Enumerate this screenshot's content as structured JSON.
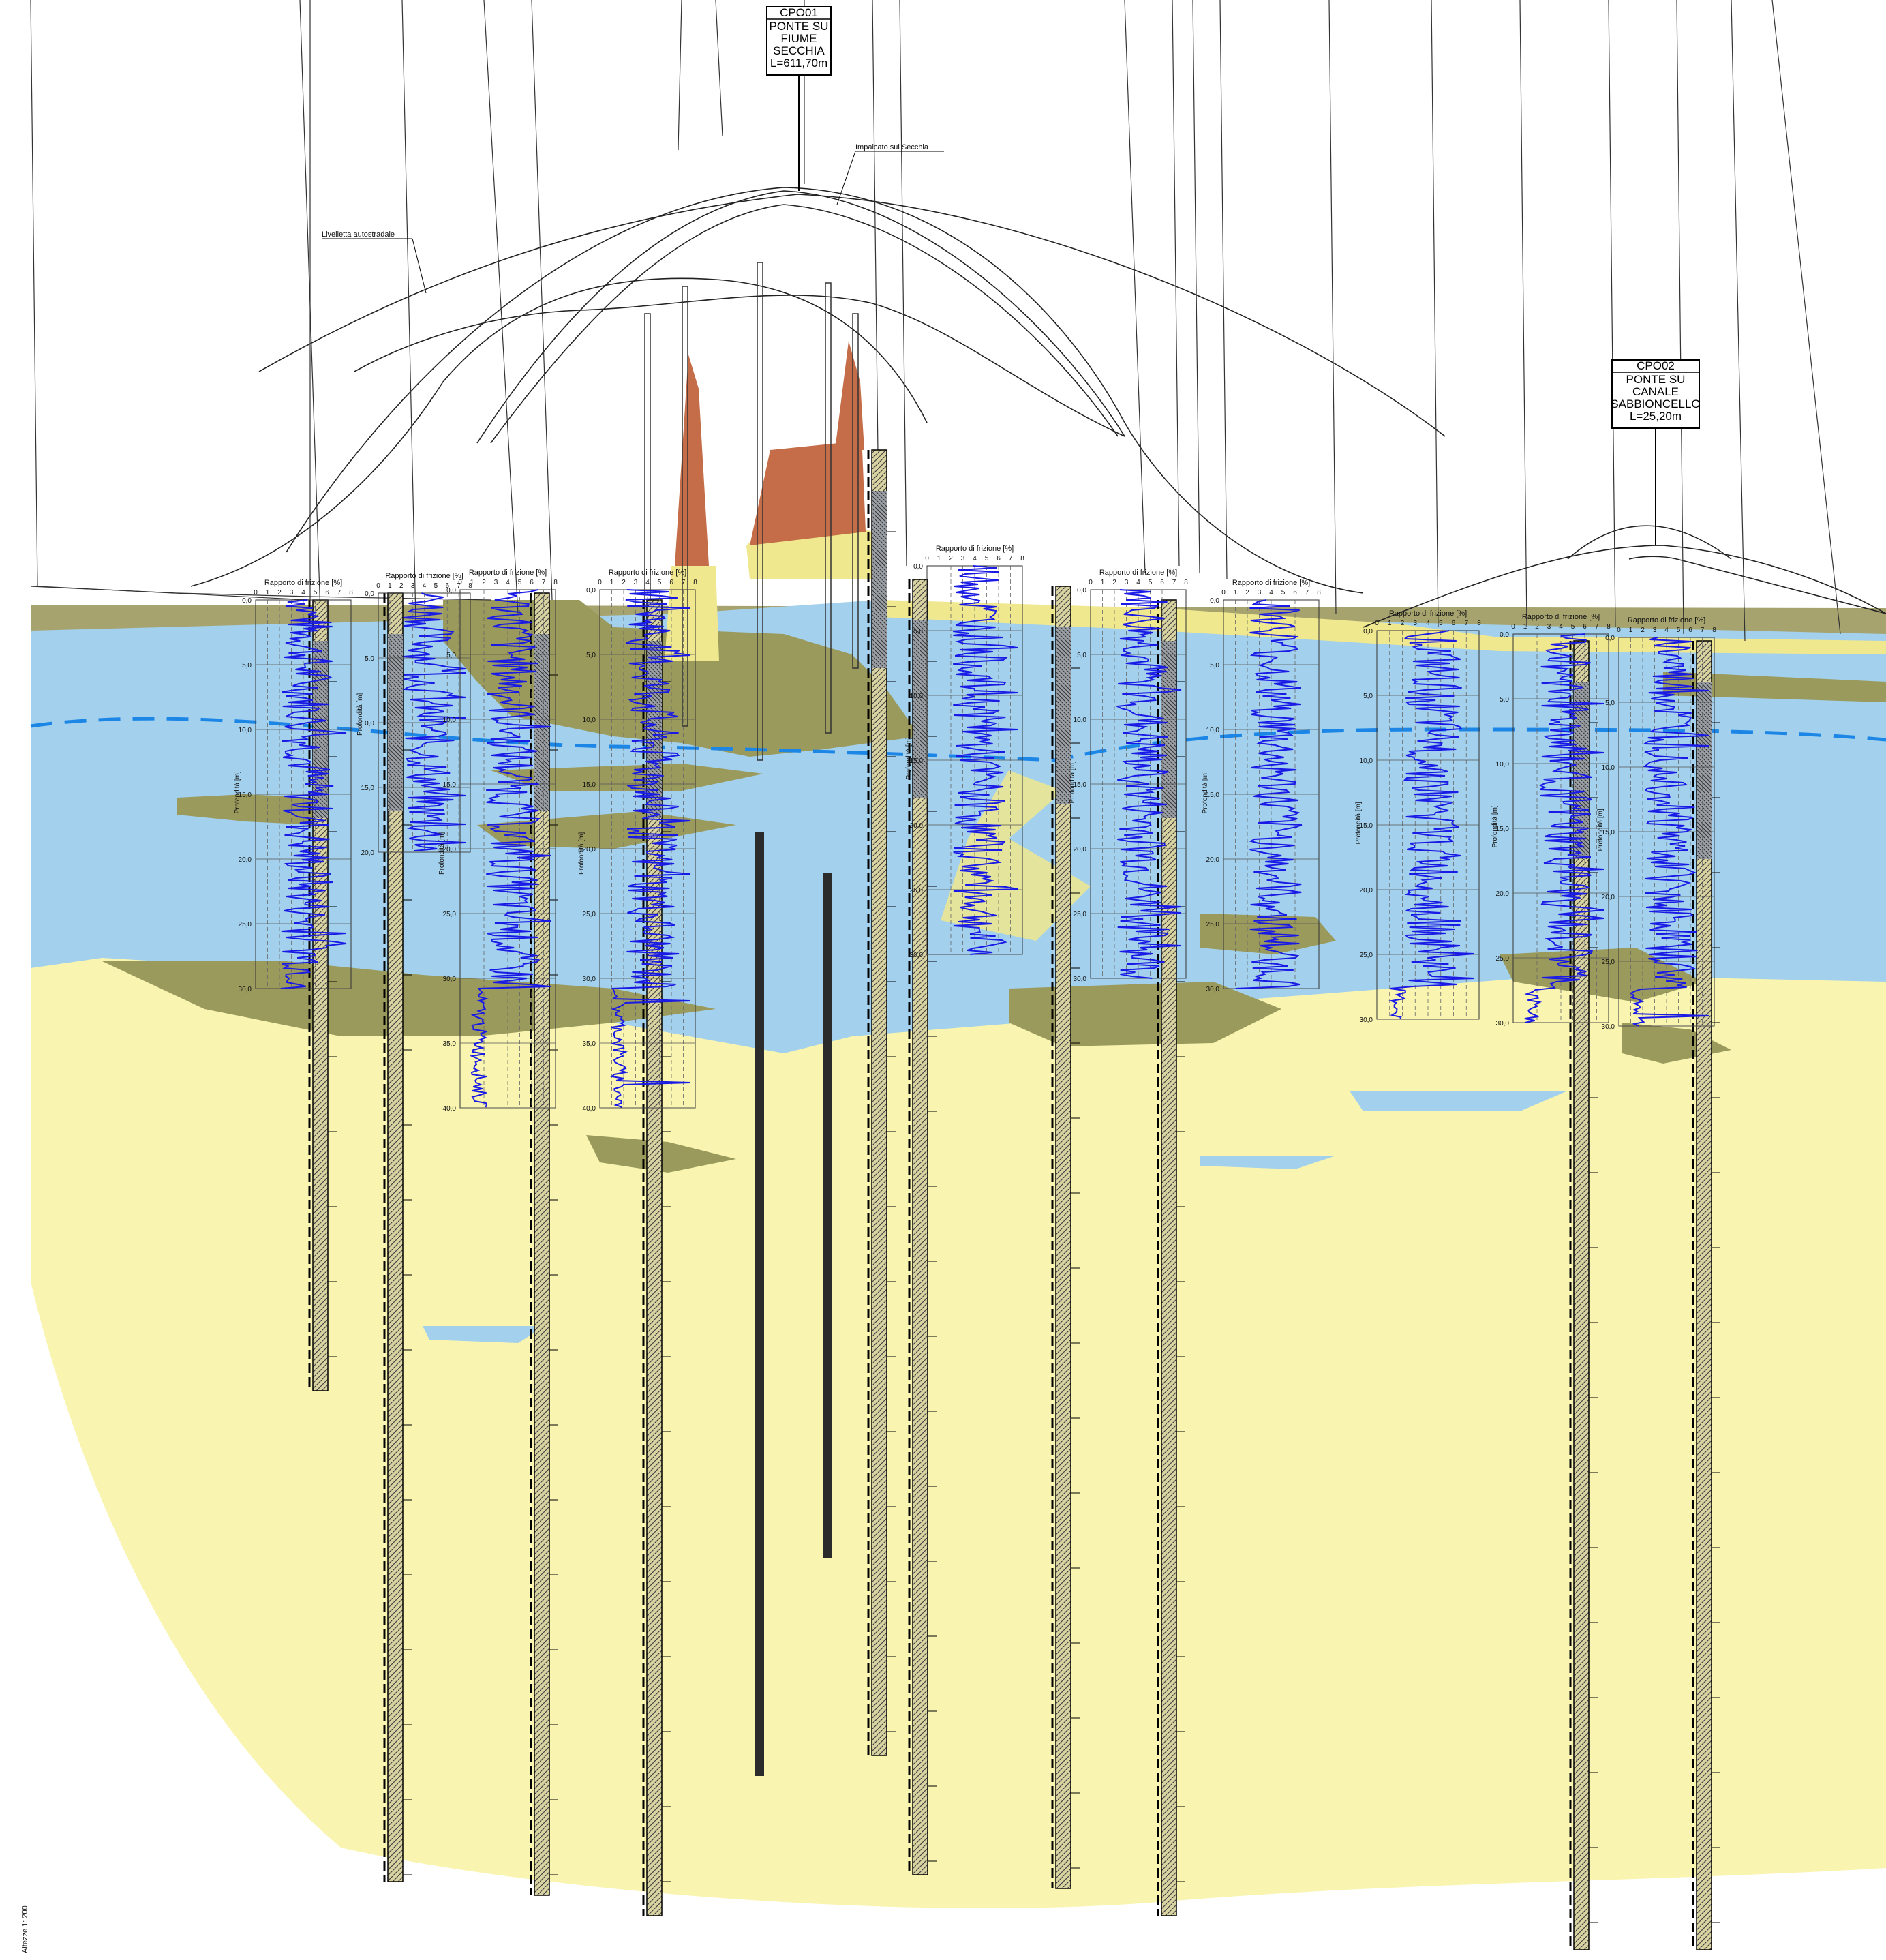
{
  "bridge_boxes": [
    {
      "code": "CPO01",
      "lines": [
        "PONTE SU",
        "FIUME",
        "SECCHIA",
        "L=611,70m"
      ]
    },
    {
      "code": "CPO02",
      "lines": [
        "PONTE SU",
        "CANALE",
        "SABBIONCELLO",
        "L=25,20m"
      ]
    }
  ],
  "annotations": {
    "deck": "Impalcato sul Secchia",
    "grade": "Livelletta autostradale",
    "scale": "Altezze 1: 200"
  },
  "cpt_common": {
    "friction_title": "Rapporto di frizione [%]",
    "friction_ticks": [
      "0",
      "1",
      "2",
      "3",
      "4",
      "5",
      "6",
      "7",
      "8"
    ],
    "depth_axis": "Profondità [m]",
    "zero_label": "0,0"
  },
  "cpt_tests": [
    {
      "depth_ticks": [
        "5,0",
        "10,0",
        "15,0",
        "20,0",
        "25,0",
        "30,0"
      ],
      "max_depth_m": 30
    },
    {
      "depth_ticks": [
        "5,0",
        "10,0",
        "15,0",
        "20,0"
      ],
      "max_depth_m": 20
    },
    {
      "depth_ticks": [
        "5,0",
        "10,0",
        "15,0",
        "20,0",
        "25,0",
        "30,0",
        "35,0",
        "40,0"
      ],
      "max_depth_m": 40
    },
    {
      "depth_ticks": [
        "5,0",
        "10,0",
        "15,0",
        "20,0",
        "25,0",
        "30,0",
        "35,0",
        "40,0"
      ],
      "max_depth_m": 40
    },
    {
      "depth_ticks": [
        "5,0",
        "10,0",
        "15,0",
        "20,0",
        "25,0",
        "30,0"
      ],
      "max_depth_m": 30
    },
    {
      "depth_ticks": [
        "5,0",
        "10,0",
        "15,0",
        "20,0",
        "25,0",
        "30,0"
      ],
      "max_depth_m": 30
    },
    {
      "depth_ticks": [
        "5,0",
        "10,0",
        "15,0",
        "20,0",
        "25,0",
        "30,0"
      ],
      "max_depth_m": 30
    },
    {
      "depth_ticks": [
        "5,0",
        "10,0",
        "15,0",
        "20,0",
        "25,0",
        "30,0"
      ],
      "max_depth_m": 30
    },
    {
      "depth_ticks": [
        "5,0",
        "10,0",
        "15,0",
        "20,0",
        "25,0",
        "30,0"
      ],
      "max_depth_m": 30
    },
    {
      "depth_ticks": [
        "5,0",
        "10,0",
        "15,0",
        "20,0",
        "25,0",
        "30,0"
      ],
      "max_depth_m": 30
    }
  ],
  "colors": {
    "sand": "#f9f5b0",
    "clay_silt": "#a3d0ec",
    "silty_sand": "#9b9a5d",
    "embankment": "#c46d48",
    "fill_top": "#f0e88f",
    "cpt_curve": "#1a1ae6",
    "water_table": "#1c86e6",
    "borehole_dark": "#2b2b2b"
  }
}
